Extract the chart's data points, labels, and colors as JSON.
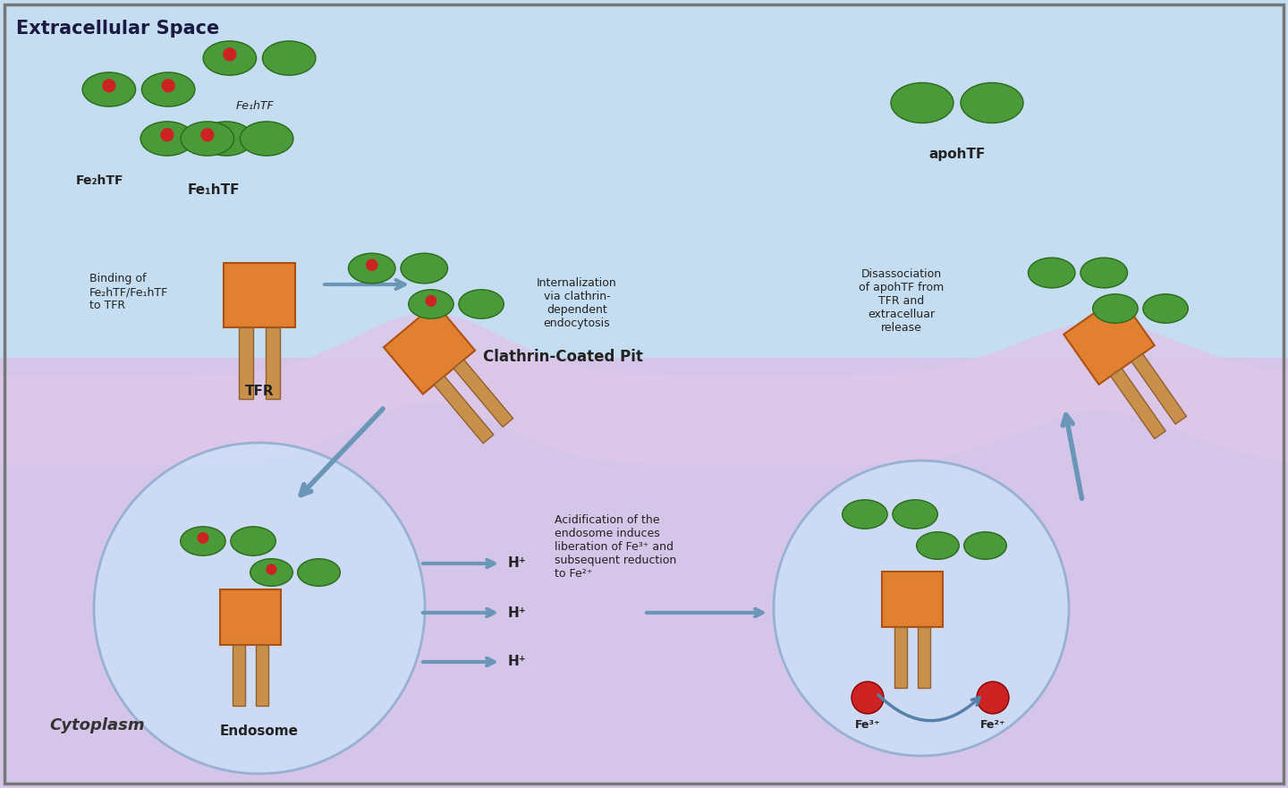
{
  "bg_extracellular": "#c5ddf0",
  "bg_cytoplasm": "#d5c5e8",
  "color_membrane": "#ddc8ea",
  "color_green": "#4a9a3a",
  "color_green_edge": "#2a6a1a",
  "color_orange": "#e08030",
  "color_orange_edge": "#b05010",
  "color_tan": "#c8904a",
  "color_tan_edge": "#906030",
  "color_red": "#cc2222",
  "color_arrow": "#6a96b8",
  "color_endosome_fill": "#cce0f8",
  "color_endosome_edge": "#88aacc",
  "title_extracellular": "Extracellular Space",
  "title_cytoplasm": "Cytoplasm",
  "label_fe2htf": "Fe₂hTF",
  "label_fe1htf_sub": "Fe₁hTF",
  "label_fe1htf_main": "Fe₁hTF",
  "label_apohtf": "apohTF",
  "label_tfr": "TFR",
  "label_clathrin": "Clathrin-Coated Pit",
  "label_endosome": "Endosome",
  "label_binding": "Binding of\nFe₂hTF/Fe₁hTF\nto TFR",
  "label_internalization": "Internalization\nvia clathrin-\ndependent\nendocytosis",
  "label_disassociation": "Disassociation\nof apohTF from\nTFR and\nextracelluar\nrelease",
  "label_acidification": "Acidification of the\nendosome induces\nliberation of Fe³⁺ and\nsubsequent reduction\nto Fe²⁺",
  "label_fe3": "Fe³⁺",
  "label_fe2": "Fe²⁺",
  "label_h1": "H⁺",
  "label_h2": "H⁺",
  "label_h3": "H⁺"
}
